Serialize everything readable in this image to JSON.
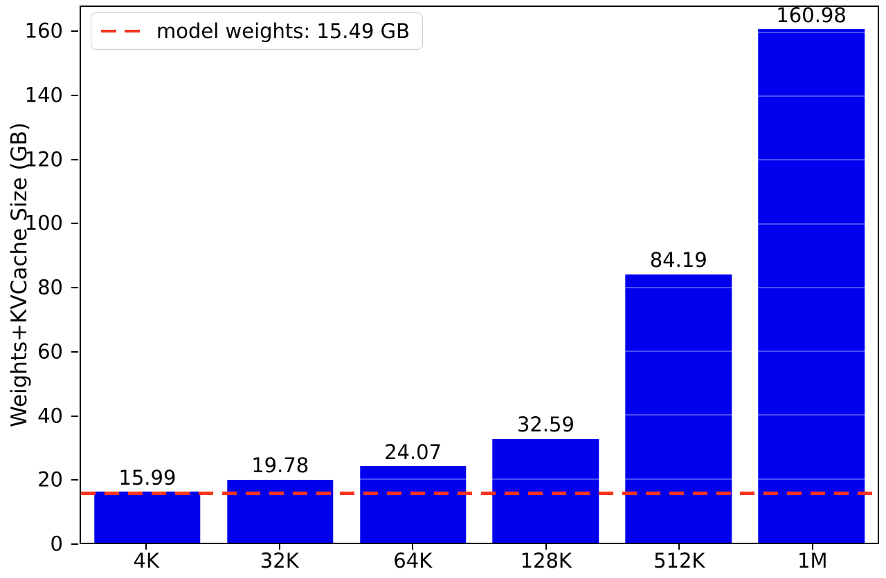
{
  "chart_data": {
    "type": "bar",
    "categories": [
      "4K",
      "32K",
      "64K",
      "128K",
      "512K",
      "1M"
    ],
    "values": [
      15.99,
      19.78,
      24.07,
      32.59,
      84.19,
      160.98
    ],
    "bar_labels": [
      "15.99",
      "19.78",
      "24.07",
      "32.59",
      "84.19",
      "160.98"
    ],
    "title": "",
    "xlabel": "",
    "ylabel": "Weights+KVCache Size (GB)",
    "ylim": [
      0,
      168
    ],
    "yticks": [
      0,
      20,
      40,
      60,
      80,
      100,
      120,
      140,
      160
    ],
    "bar_color": "#0000ee",
    "bar_width_fraction": 0.8,
    "grid": false,
    "legend_position": "upper left",
    "reference_line": {
      "value": 15.49,
      "label": "model weights: 15.49 GB",
      "color": "#f8341f",
      "style": "dashed"
    }
  }
}
